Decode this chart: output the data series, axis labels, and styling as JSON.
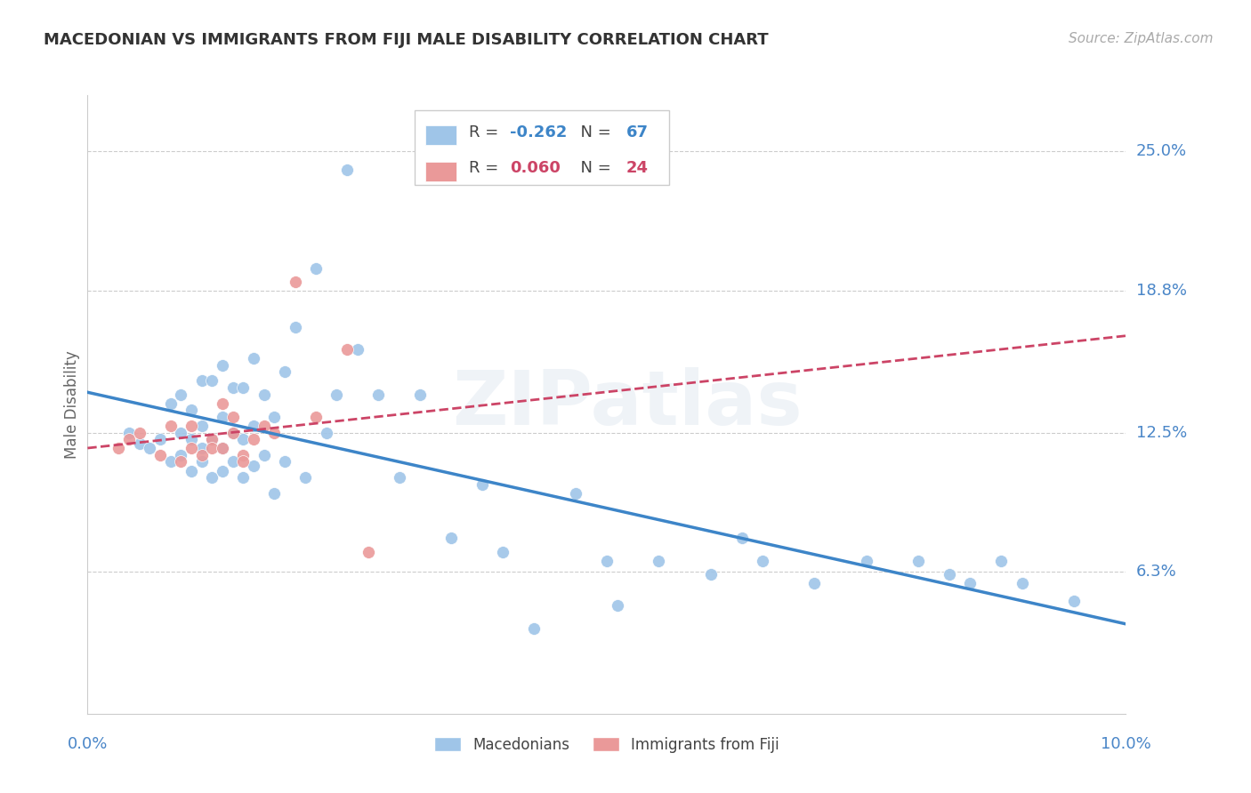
{
  "title": "MACEDONIAN VS IMMIGRANTS FROM FIJI MALE DISABILITY CORRELATION CHART",
  "source": "Source: ZipAtlas.com",
  "ylabel": "Male Disability",
  "ytick_labels": [
    "25.0%",
    "18.8%",
    "12.5%",
    "6.3%"
  ],
  "ytick_values": [
    0.25,
    0.188,
    0.125,
    0.063
  ],
  "xlim": [
    0.0,
    0.1
  ],
  "ylim": [
    0.0,
    0.275
  ],
  "r_macedonian": -0.262,
  "n_macedonian": 67,
  "r_fiji": 0.06,
  "n_fiji": 24,
  "color_macedonian": "#9fc5e8",
  "color_fiji": "#ea9999",
  "color_macedonian_line": "#3d85c8",
  "color_fiji_line": "#cc4466",
  "background_color": "#ffffff",
  "grid_color": "#cccccc",
  "watermark": "ZIPatlas",
  "legend_label_mac": "Macedonians",
  "legend_label_fiji": "Immigrants from Fiji",
  "macedonian_x": [
    0.004,
    0.005,
    0.006,
    0.007,
    0.008,
    0.008,
    0.009,
    0.009,
    0.009,
    0.01,
    0.01,
    0.01,
    0.011,
    0.011,
    0.011,
    0.011,
    0.012,
    0.012,
    0.012,
    0.013,
    0.013,
    0.013,
    0.013,
    0.014,
    0.014,
    0.014,
    0.015,
    0.015,
    0.015,
    0.016,
    0.016,
    0.016,
    0.017,
    0.017,
    0.018,
    0.018,
    0.019,
    0.019,
    0.02,
    0.021,
    0.022,
    0.023,
    0.024,
    0.025,
    0.026,
    0.028,
    0.03,
    0.032,
    0.035,
    0.038,
    0.04,
    0.043,
    0.047,
    0.05,
    0.051,
    0.055,
    0.06,
    0.063,
    0.065,
    0.07,
    0.075,
    0.08,
    0.083,
    0.085,
    0.088,
    0.09,
    0.095
  ],
  "macedonian_y": [
    0.125,
    0.12,
    0.118,
    0.122,
    0.112,
    0.138,
    0.115,
    0.125,
    0.142,
    0.108,
    0.122,
    0.135,
    0.112,
    0.118,
    0.128,
    0.148,
    0.105,
    0.122,
    0.148,
    0.108,
    0.118,
    0.132,
    0.155,
    0.112,
    0.125,
    0.145,
    0.105,
    0.122,
    0.145,
    0.11,
    0.128,
    0.158,
    0.115,
    0.142,
    0.098,
    0.132,
    0.112,
    0.152,
    0.172,
    0.105,
    0.198,
    0.125,
    0.142,
    0.242,
    0.162,
    0.142,
    0.105,
    0.142,
    0.078,
    0.102,
    0.072,
    0.038,
    0.098,
    0.068,
    0.048,
    0.068,
    0.062,
    0.078,
    0.068,
    0.058,
    0.068,
    0.068,
    0.062,
    0.058,
    0.068,
    0.058,
    0.05
  ],
  "fiji_x": [
    0.003,
    0.004,
    0.005,
    0.007,
    0.008,
    0.009,
    0.01,
    0.01,
    0.011,
    0.012,
    0.012,
    0.013,
    0.013,
    0.014,
    0.014,
    0.015,
    0.015,
    0.016,
    0.017,
    0.018,
    0.02,
    0.022,
    0.025,
    0.027
  ],
  "fiji_y": [
    0.118,
    0.122,
    0.125,
    0.115,
    0.128,
    0.112,
    0.118,
    0.128,
    0.115,
    0.122,
    0.118,
    0.138,
    0.118,
    0.132,
    0.125,
    0.115,
    0.112,
    0.122,
    0.128,
    0.125,
    0.192,
    0.132,
    0.162,
    0.072
  ]
}
